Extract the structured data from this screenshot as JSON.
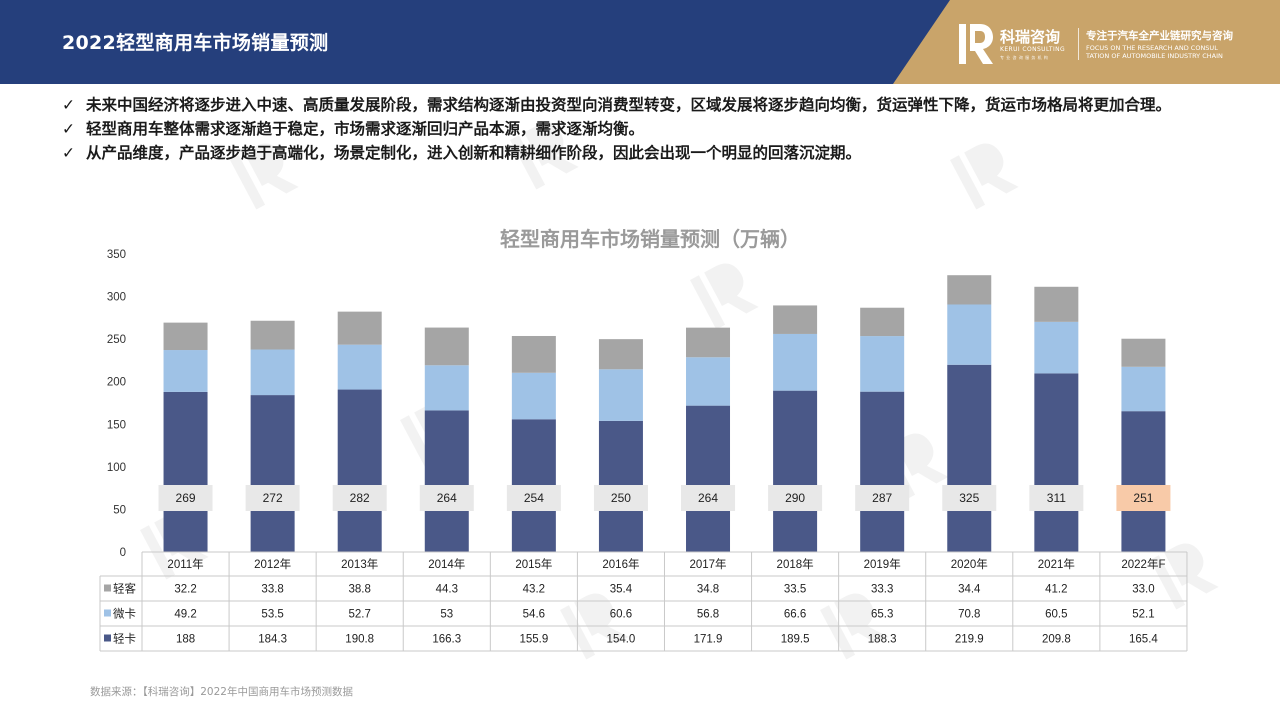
{
  "header": {
    "title": "2022轻型商用车市场销量预测",
    "brand_name": "科瑞咨询",
    "brand_en": "KERUI CONSULTING",
    "brand_sub": "专 业 咨 询 服 务 机 构",
    "slogan": "专注于汽车全产业链研究与咨询",
    "slogan_en_line1": "FOCUS ON THE RESEARCH AND CONSUL",
    "slogan_en_line2": "TATION OF AUTOMOBILE INDUSTRY CHAIN",
    "colors": {
      "navy": "#253f7c",
      "gold": "#c9a46a"
    }
  },
  "bullets": [
    "未来中国经济将逐步进入中速、高质量发展阶段，需求结构逐渐由投资型向消费型转变，区域发展将逐步趋向均衡，货运弹性下降，货运市场格局将更加合理。",
    "轻型商用车整体需求逐渐趋于稳定，市场需求逐渐回归产品本源，需求逐渐均衡。",
    "从产品维度，产品逐步趋于高端化，场景定制化，进入创新和精耕细作阶段，因此会出现一个明显的回落沉淀期。"
  ],
  "source": "数据来源：【科瑞咨询】2022年中国商用车市场预测数据",
  "chart_data": {
    "type": "bar",
    "stacked": true,
    "title": "轻型商用车市场销量预测（万辆）",
    "categories": [
      "2011年",
      "2012年",
      "2013年",
      "2014年",
      "2015年",
      "2016年",
      "2017年",
      "2018年",
      "2019年",
      "2020年",
      "2021年",
      "2022年F"
    ],
    "ylim": [
      0,
      350
    ],
    "yticks": [
      0,
      50,
      100,
      150,
      200,
      250,
      300,
      350
    ],
    "series": [
      {
        "name": "轻卡",
        "color": "#4a5888",
        "values": [
          "188",
          "184.3",
          "190.8",
          "166.3",
          "155.9",
          "154.0",
          "171.9",
          "189.5",
          "188.3",
          "219.9",
          "209.8",
          "165.4"
        ]
      },
      {
        "name": "微卡",
        "color": "#9fc2e6",
        "values": [
          "49.2",
          "53.5",
          "52.7",
          "53",
          "54.6",
          "60.6",
          "56.8",
          "66.6",
          "65.3",
          "70.8",
          "60.5",
          "52.1"
        ]
      },
      {
        "name": "轻客",
        "color": "#a5a5a5",
        "values": [
          "32.2",
          "33.8",
          "38.8",
          "44.3",
          "43.2",
          "35.4",
          "34.8",
          "33.5",
          "33.3",
          "34.4",
          "41.2",
          "33.0"
        ]
      }
    ],
    "totals": [
      "269",
      "272",
      "282",
      "264",
      "254",
      "250",
      "264",
      "290",
      "287",
      "325",
      "311",
      "251"
    ],
    "total_label_colors": {
      "normal": "#e8e8e8",
      "forecast": "#f8caa8"
    },
    "data_table": true,
    "grid": false
  }
}
